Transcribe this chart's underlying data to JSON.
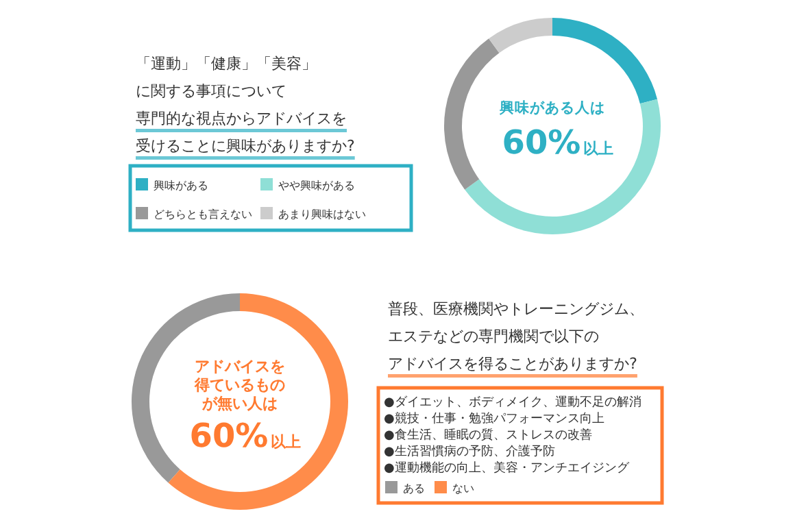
{
  "chart_data": [
    {
      "type": "donut",
      "title": "「運動」「健康」「美容」に関する事項について専門的な視点からアドバイスを受けることに興味がありますか?",
      "categories": [
        "興味がある",
        "やや興味がある",
        "どちらとも言えない",
        "あまり興味はない"
      ],
      "values": [
        21,
        44,
        25,
        10
      ],
      "colors": [
        "#2eb0c4",
        "#8fdfd6",
        "#999999",
        "#cccccc"
      ],
      "legend": "left",
      "annotations": [
        "興味がある人は",
        "60%",
        "以上"
      ]
    },
    {
      "type": "donut",
      "title": "普段、医療機関やトレーニングジム、エステなどの専門機関で以下のアドバイスを得ることがありますか?",
      "categories": [
        "ある",
        "ない"
      ],
      "values": [
        38.5,
        61.5
      ],
      "colors": [
        "#999999",
        "#ff8c4a"
      ],
      "legend": "right",
      "annotations": [
        "アドバイスを得ているものが無い人は",
        "60%",
        "以上",
        "●ダイエット、ボディメイク、運動不足の解消",
        "●競技・仕事・勉強パフォーマンス向上",
        "●食生活、睡眠の質、ストレスの改善",
        "●生活習慣病の予防、介護予防",
        "●運動機能の向上、美容・アンチエイジング"
      ]
    }
  ]
}
